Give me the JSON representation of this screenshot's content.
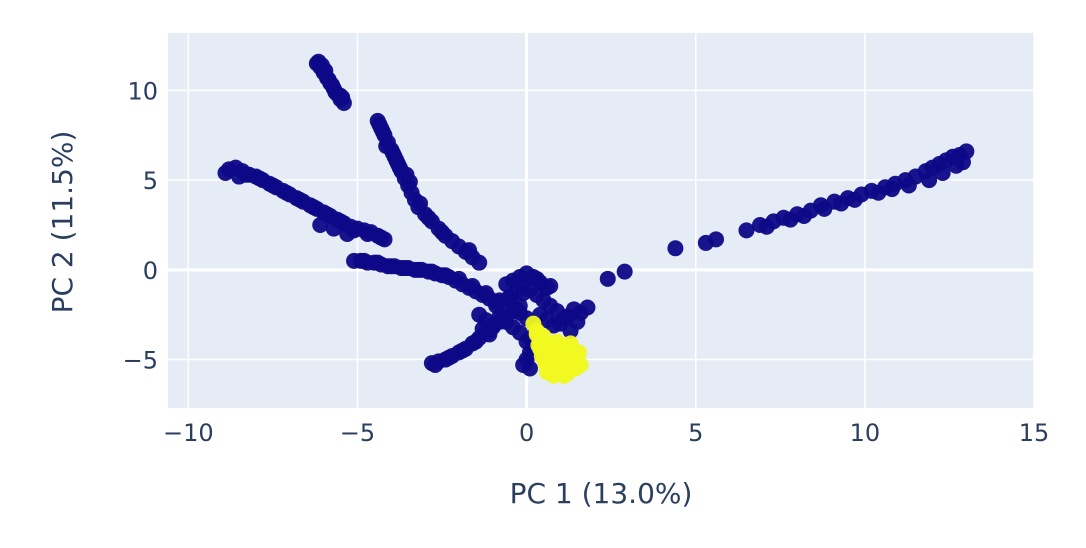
{
  "chart_data": {
    "type": "scatter",
    "xlabel": "PC 1 (13.0%)",
    "ylabel": "PC 2 (11.5%)",
    "xlim": [
      -10.6,
      15.0
    ],
    "ylim": [
      -7.7,
      13.2
    ],
    "x_ticks": [
      -10,
      -5,
      0,
      5,
      10,
      15
    ],
    "x_tick_labels": [
      "−10",
      "−5",
      "0",
      "5",
      "10",
      "15"
    ],
    "y_ticks": [
      -5,
      0,
      5,
      10
    ],
    "y_tick_labels": [
      "−5",
      "0",
      "5",
      "10"
    ],
    "grid": true,
    "zero_lines": true,
    "legend": "none",
    "colors": {
      "plot_bg": "#e5ecf6",
      "grid": "#ffffff",
      "text": "#2a3f5f",
      "group_a": "#0d0887",
      "group_b": "#f0f921"
    },
    "series": [
      {
        "color": "#0d0887",
        "x": [
          -6.2,
          -6.1,
          -6.0,
          -5.9,
          -5.8,
          -5.7,
          -5.6,
          -5.5,
          -6.15,
          -5.95,
          -5.75,
          -5.65,
          -5.45,
          -5.4,
          -5.5,
          -6.05,
          -5.85,
          -4.4,
          -4.3,
          -4.2,
          -4.1,
          -4.0,
          -3.9,
          -3.8,
          -4.35,
          -4.25,
          -3.7,
          -3.6,
          -3.5,
          -3.4,
          -3.3,
          -3.2,
          -3.0,
          -2.8,
          -2.6,
          -2.4,
          -2.2,
          -2.0,
          -1.8,
          -1.6,
          -1.4,
          -1.7,
          -4.15,
          -3.95,
          -3.85,
          -3.75,
          -3.55,
          -3.45,
          -3.15,
          -2.9,
          -2.5,
          -8.9,
          -8.8,
          -8.6,
          -8.4,
          -8.2,
          -8.0,
          -7.8,
          -7.6,
          -7.4,
          -7.2,
          -7.0,
          -6.8,
          -6.6,
          -6.4,
          -6.2,
          -6.0,
          -5.8,
          -5.6,
          -5.4,
          -5.2,
          -5.0,
          -4.8,
          -4.6,
          -4.4,
          -4.2,
          -8.5,
          -8.3,
          -7.9,
          -7.5,
          -7.1,
          -6.7,
          -6.3,
          -5.9,
          -5.5,
          -5.1,
          -4.7,
          -4.3,
          -6.1,
          -5.7,
          -5.3,
          -5.1,
          -4.9,
          -4.7,
          -4.5,
          -4.3,
          -4.1,
          -3.9,
          -3.7,
          -3.5,
          -3.3,
          -3.1,
          -2.9,
          -2.7,
          -2.5,
          -2.3,
          -2.1,
          -1.9,
          -1.7,
          -1.5,
          -1.3,
          -1.1,
          -0.9,
          -4.8,
          -4.4,
          -4.0,
          -3.6,
          -3.2,
          -2.8,
          -2.4,
          -2.0,
          -1.6,
          -1.2,
          -0.8,
          -2.8,
          -2.6,
          -2.4,
          -2.2,
          -2.0,
          -1.8,
          -1.6,
          -1.4,
          -1.2,
          -1.0,
          -0.8,
          -0.6,
          -0.4,
          -0.2,
          -2.7,
          -2.3,
          -1.9,
          -1.5,
          -1.1,
          -0.7,
          -0.3,
          -1.4,
          -1.2,
          -1.0,
          -0.8,
          -0.6,
          -0.4,
          -0.2,
          0.0,
          0.2,
          0.4,
          0.6,
          0.8,
          1.0,
          1.2,
          1.4,
          1.6,
          1.8,
          -1.3,
          -1.1,
          -0.9,
          -0.7,
          -0.5,
          -0.3,
          -0.1,
          0.1,
          0.3,
          0.5,
          0.7,
          0.9,
          1.1,
          1.3,
          1.5,
          -0.6,
          -0.4,
          -0.2,
          0.0,
          0.2,
          0.4,
          0.6,
          -0.5,
          -0.1,
          0.3,
          0.7,
          -0.2,
          0.1,
          2.4,
          2.9,
          4.4,
          5.3,
          5.6,
          6.5,
          6.9,
          7.3,
          7.6,
          8.0,
          8.4,
          8.7,
          9.1,
          9.5,
          9.9,
          10.2,
          10.6,
          10.9,
          11.2,
          11.5,
          11.8,
          12.0,
          12.2,
          12.4,
          12.6,
          12.8,
          13.0,
          12.9,
          12.7,
          12.3,
          11.9,
          11.3,
          10.8,
          10.4,
          9.7,
          9.3,
          8.8,
          8.2,
          7.8,
          7.1,
          0.1,
          0.0,
          -0.1,
          0.2,
          0.1,
          0.0
        ],
        "y": [
          11.5,
          11.3,
          11.0,
          10.7,
          10.4,
          10.1,
          9.8,
          9.5,
          11.6,
          11.1,
          10.3,
          9.9,
          9.6,
          9.3,
          9.7,
          11.4,
          10.6,
          8.3,
          7.9,
          7.5,
          7.1,
          6.7,
          6.3,
          5.9,
          8.1,
          7.7,
          5.5,
          5.1,
          4.7,
          4.3,
          3.9,
          3.5,
          3.1,
          2.7,
          2.3,
          1.9,
          1.6,
          1.3,
          1.0,
          0.7,
          0.4,
          1.1,
          6.9,
          6.5,
          6.1,
          5.7,
          5.3,
          4.9,
          3.7,
          2.9,
          2.1,
          5.4,
          5.6,
          5.7,
          5.5,
          5.3,
          5.2,
          5.0,
          4.8,
          4.6,
          4.4,
          4.2,
          4.0,
          3.8,
          3.6,
          3.4,
          3.2,
          3.0,
          2.8,
          2.6,
          2.4,
          2.3,
          2.2,
          2.1,
          1.9,
          1.7,
          5.2,
          5.3,
          5.1,
          4.7,
          4.3,
          3.9,
          3.5,
          3.1,
          2.7,
          2.2,
          2.0,
          1.8,
          2.5,
          2.3,
          2.0,
          0.5,
          0.5,
          0.4,
          0.4,
          0.3,
          0.2,
          0.2,
          0.1,
          0.1,
          0.0,
          0.0,
          -0.1,
          -0.2,
          -0.3,
          -0.4,
          -0.6,
          -0.8,
          -1.0,
          -1.2,
          -1.4,
          -1.6,
          -1.8,
          0.5,
          0.4,
          0.2,
          0.1,
          0.0,
          -0.1,
          -0.3,
          -0.5,
          -0.9,
          -1.3,
          -1.7,
          -5.2,
          -5.1,
          -5.0,
          -4.8,
          -4.6,
          -4.4,
          -4.1,
          -3.8,
          -3.5,
          -3.2,
          -2.9,
          -2.6,
          -2.3,
          -2.0,
          -5.3,
          -4.9,
          -4.5,
          -4.0,
          -3.4,
          -2.8,
          -2.2,
          -2.5,
          -2.8,
          -3.1,
          -2.6,
          -2.9,
          -3.2,
          -2.4,
          -2.7,
          -3.0,
          -2.5,
          -2.8,
          -3.1,
          -3.0,
          -2.6,
          -2.2,
          -2.4,
          -2.1,
          -3.3,
          -3.6,
          -2.0,
          -1.8,
          -1.5,
          -1.2,
          -0.9,
          -1.1,
          -1.4,
          -1.7,
          -2.0,
          -2.3,
          -2.7,
          -3.4,
          -2.9,
          -0.8,
          -0.6,
          -0.4,
          -0.2,
          -0.4,
          -0.7,
          -1.0,
          -1.6,
          -1.3,
          -0.5,
          -0.9,
          -3.5,
          -3.8,
          -0.5,
          -0.1,
          1.2,
          1.5,
          1.7,
          2.2,
          2.5,
          2.7,
          2.9,
          3.1,
          3.3,
          3.6,
          3.8,
          4.0,
          4.2,
          4.4,
          4.6,
          4.8,
          5.0,
          5.2,
          5.5,
          5.7,
          5.9,
          6.1,
          6.3,
          6.4,
          6.6,
          6.0,
          5.8,
          5.4,
          5.0,
          4.7,
          4.5,
          4.3,
          3.9,
          3.7,
          3.4,
          3.0,
          2.8,
          2.4,
          -4.6,
          -5.0,
          -5.3,
          -4.3,
          -5.5,
          -4.0
        ]
      },
      {
        "color": "#f0f921",
        "x": [
          0.2,
          0.3,
          0.4,
          0.5,
          0.6,
          0.7,
          0.8,
          0.9,
          1.0,
          1.1,
          1.2,
          1.3,
          1.4,
          1.5,
          1.6,
          0.35,
          0.45,
          0.55,
          0.65,
          0.75,
          0.85,
          0.95,
          1.05,
          1.15,
          1.25,
          1.35,
          1.45,
          1.55,
          0.5,
          0.7,
          0.9,
          1.1,
          1.3,
          0.3,
          0.6,
          0.8,
          1.0,
          1.2,
          1.4,
          0.4,
          0.75,
          1.05
        ],
        "y": [
          -3.0,
          -3.4,
          -4.0,
          -4.5,
          -5.0,
          -5.3,
          -5.6,
          -5.8,
          -5.7,
          -5.9,
          -5.6,
          -5.2,
          -4.8,
          -5.0,
          -5.3,
          -4.2,
          -4.8,
          -5.2,
          -4.6,
          -5.5,
          -4.4,
          -5.0,
          -4.7,
          -5.4,
          -4.9,
          -4.5,
          -5.5,
          -4.6,
          -3.7,
          -4.2,
          -4.0,
          -4.3,
          -4.1,
          -3.6,
          -5.7,
          -5.9,
          -5.2,
          -5.8,
          -5.1,
          -4.4,
          -4.9,
          -4.4
        ]
      }
    ]
  }
}
